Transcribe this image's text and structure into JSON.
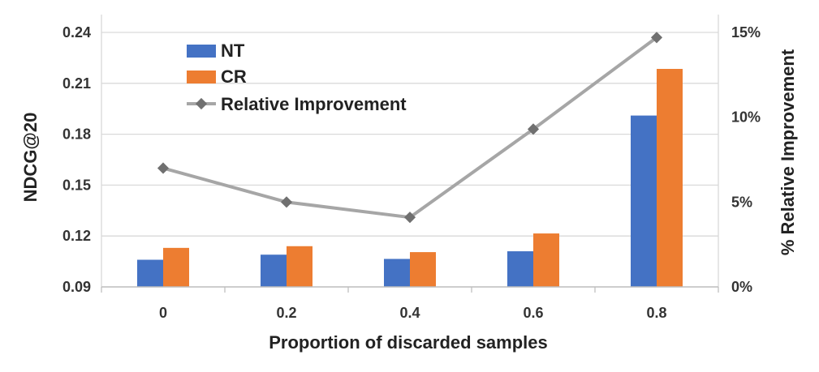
{
  "chart_data": {
    "type": "bar+line",
    "categories": [
      "0",
      "0.2",
      "0.4",
      "0.6",
      "0.8"
    ],
    "xlabel": "Proportion of discarded samples",
    "ylabel": "NDCG@20",
    "y2label": "% Relative Improvement",
    "ylim": [
      0.09,
      0.24
    ],
    "yticks": [
      "0.09",
      "0.12",
      "0.15",
      "0.18",
      "0.21",
      "0.24"
    ],
    "y2lim": [
      0,
      15
    ],
    "y2ticks": [
      "0%",
      "5%",
      "10%",
      "15%"
    ],
    "grid": true,
    "legend_position": "top-left",
    "series": [
      {
        "name": "NT",
        "type": "bar",
        "axis": "left",
        "color": "#4472C4",
        "values": [
          0.106,
          0.109,
          0.1065,
          0.111,
          0.191
        ]
      },
      {
        "name": "CR",
        "type": "bar",
        "axis": "left",
        "color": "#ED7D31",
        "values": [
          0.113,
          0.114,
          0.1105,
          0.1215,
          0.2185
        ]
      },
      {
        "name": "Relative Improvement",
        "type": "line",
        "axis": "right",
        "color": "#A6A6A6",
        "marker": "diamond",
        "values": [
          7.0,
          5.0,
          4.1,
          9.3,
          14.7
        ]
      }
    ]
  }
}
